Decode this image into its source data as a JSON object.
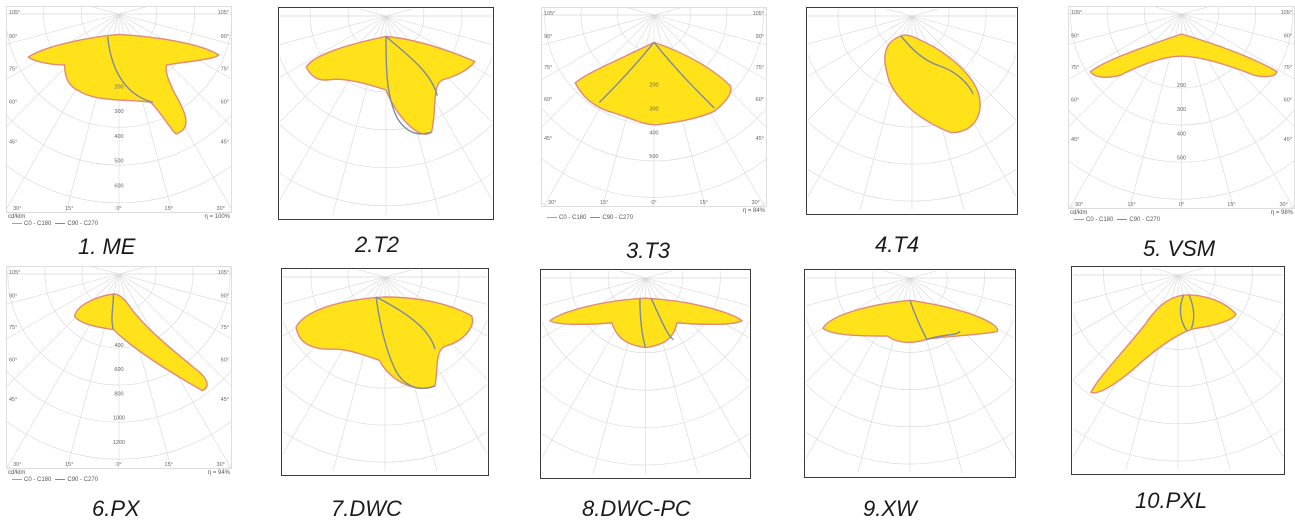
{
  "colors": {
    "fill": "#ffe21a",
    "c0": "#e08a7a",
    "c90": "#7f8aa0",
    "grid": "#d8d8d8"
  },
  "panels": [
    {
      "caption": "1. ME",
      "boxed": false,
      "footer": true,
      "unit": "cd/klm",
      "eta": "η = 100%",
      "legend_c0": "C0 - C180",
      "legend_c90": "C90 - C270",
      "angles_top": [
        "105°",
        "90°",
        "75°",
        "60°",
        "45°"
      ],
      "angles_bottom": [
        "30°",
        "15°",
        "0°",
        "15°",
        "30°"
      ],
      "radial": [
        "200",
        "300",
        "400",
        "500",
        "600"
      ],
      "shape": "me"
    },
    {
      "caption": "2.T2",
      "boxed": true,
      "footer": false,
      "shape": "t2"
    },
    {
      "caption": "3.T3",
      "boxed": false,
      "footer": true,
      "unit": "",
      "eta": "η = 84%",
      "legend_c0": "C0 - C180",
      "legend_c90": "C90 - C270",
      "angles_top": [
        "105°",
        "90°",
        "75°",
        "60°",
        "45°"
      ],
      "angles_bottom": [
        "30°",
        "15°",
        "0°",
        "15°",
        "30°"
      ],
      "radial": [
        "200",
        "300",
        "400",
        "500"
      ],
      "shape": "t3"
    },
    {
      "caption": "4.T4",
      "boxed": true,
      "footer": false,
      "shape": "t4"
    },
    {
      "caption": "5. VSM",
      "boxed": false,
      "footer": true,
      "unit": "cd/klm",
      "eta": "η = 98%",
      "legend_c0": "C0 - C180",
      "legend_c90": "C90 - C270",
      "angles_top": [
        "105°",
        "90°",
        "75°",
        "60°",
        "45°"
      ],
      "angles_bottom": [
        "30°",
        "15°",
        "0°",
        "15°",
        "30°"
      ],
      "radial": [
        "200",
        "300",
        "400",
        "500"
      ],
      "shape": "vsm"
    },
    {
      "caption": "6.PX",
      "boxed": false,
      "footer": true,
      "unit": "cd/klm",
      "eta": "η = 94%",
      "legend_c0": "C0 - C180",
      "legend_c90": "C90 - C270",
      "angles_top": [
        "105°",
        "90°",
        "75°",
        "60°",
        "45°"
      ],
      "angles_bottom": [
        "30°",
        "15°",
        "0°",
        "15°",
        "30°"
      ],
      "radial": [
        "400",
        "600",
        "800",
        "1000",
        "1200"
      ],
      "shape": "px"
    },
    {
      "caption": "7.DWC",
      "boxed": true,
      "footer": false,
      "shape": "dwc"
    },
    {
      "caption": "8.DWC-PC",
      "boxed": true,
      "footer": false,
      "shape": "dwcpc"
    },
    {
      "caption": "9.XW",
      "boxed": true,
      "footer": false,
      "shape": "xw"
    },
    {
      "caption": "10.PXL",
      "boxed": true,
      "footer": false,
      "shape": "pxl"
    }
  ]
}
